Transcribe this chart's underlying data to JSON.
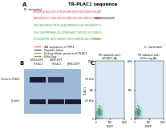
{
  "title_A": "TR-PLAC1 sequence",
  "label_N": "N- terminal",
  "label_C": "C- terminal",
  "seq_line1_red": "MMDQARSAFSNLGQKPLATRESRLARVTDGDFKSMKLENADNNSMLANY",
  "seq_line2_red": "DERPKPFNGSCCITAALLNVIRGIPNQSLANCKRVTQENLKGCPDAAPL",
  "seq_line2_black": "GGGGSGGGGSGGGGS",
  "seq_line3_green": "YINCLAIPQSRFQICPEGSLACAGFRMKNIQQFLASIFQEVKQMFPTLL",
  "seq_line4_green": "PYVSCLASPRMPRARALQTLSQPNRQSARICTYVSTVGCSVTCGNNHCS",
  "seq_line5_green": "EQCQKLNASPNLLAQSFQEAQKQTLKDQIFLNHTQNLKQLQSNMSVQH",
  "seq_line5_orange": "HHHHHH",
  "legend_red": "AA sequence of TFR1",
  "legend_black": "Peptide linker",
  "legend_green": "Extracellular portion of PLAC1",
  "legend_orange": "6His-Tag",
  "panel_B_label": "B",
  "panel_B_lanes": [
    "pIRES2-EGFP-TR-PLAC1",
    "pIRES2-EGFP-TR-PLAC1",
    "pIRES2-EGFP"
  ],
  "band1_label": "Chimeric PLAC1",
  "band1_kda": "39 kDa",
  "band2_label": "β actin",
  "band2_kda": "43 kDa",
  "panel_C_label": "C",
  "plot1_title": "PE-labeled anti-\nhPLAC1 Ab",
  "plot2_title": "PE-labeled anti-\n6His-tag Ab",
  "xlabel": "EGFP",
  "ylabel": "PLAC1",
  "bg_color": "#ffffff"
}
